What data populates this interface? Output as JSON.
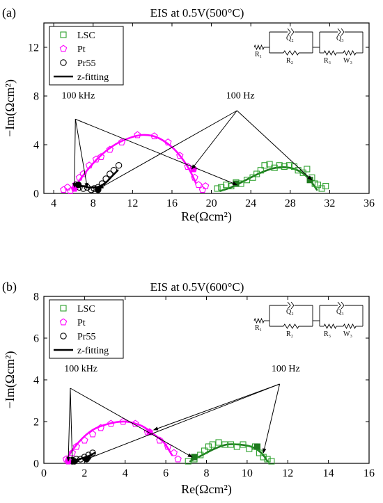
{
  "chart_data": [
    {
      "type": "scatter",
      "panel_label": "(a)",
      "title": "EIS at 0.5V(500°C)",
      "xlabel": "Re(Ωcm²)",
      "ylabel": "−Im(Ωcm²)",
      "xlim": [
        3,
        36
      ],
      "ylim": [
        0,
        14
      ],
      "xticks": [
        "4",
        "8",
        "12",
        "16",
        "20",
        "24",
        "28",
        "32",
        "36"
      ],
      "xtick_values": [
        4,
        8,
        12,
        16,
        20,
        24,
        28,
        32,
        36
      ],
      "yticks": [
        "0",
        "4",
        "8",
        "12"
      ],
      "ytick_values": [
        0,
        4,
        8,
        12
      ],
      "legend": {
        "position": "top-left",
        "entries": [
          "LSC",
          "Pt",
          "Pr55",
          "z-fitting"
        ]
      },
      "series": [
        {
          "name": "LSC",
          "color": "#2ca02c",
          "marker": "square",
          "x": [
            20.6,
            21.0,
            21.5,
            22.0,
            22.5,
            23.0,
            23.6,
            24.2,
            24.6,
            25.0,
            25.4,
            25.9,
            26.4,
            26.9,
            27.4,
            27.9,
            28.4,
            28.8,
            29.3,
            29.7,
            30.2,
            30.5,
            30.8,
            31.2,
            31.6
          ],
          "y": [
            0.4,
            0.5,
            0.7,
            0.6,
            0.9,
            0.8,
            1.1,
            1.3,
            1.6,
            1.9,
            2.3,
            2.4,
            2.1,
            2.3,
            2.2,
            2.3,
            2.2,
            1.9,
            1.7,
            2.0,
            1.3,
            0.8,
            0.7,
            0.4,
            0.6
          ]
        },
        {
          "name": "Pt",
          "color": "#ff00ff",
          "marker": "pentagon",
          "x": [
            5.0,
            5.4,
            5.7,
            6.2,
            6.6,
            7.0,
            7.6,
            8.3,
            8.8,
            9.7,
            10.9,
            12.5,
            14.2,
            15.6,
            16.8,
            17.6,
            18.3,
            18.7,
            19.1,
            19.4
          ],
          "y": [
            0.3,
            0.5,
            0.2,
            0.7,
            1.3,
            1.6,
            2.3,
            2.8,
            3.0,
            3.6,
            4.2,
            4.8,
            4.7,
            4.2,
            3.1,
            2.2,
            1.3,
            0.7,
            0.3,
            0.6
          ]
        },
        {
          "name": "Pr55",
          "color": "#000000",
          "marker": "circle",
          "x": [
            6.3,
            6.6,
            7.0,
            7.4,
            7.8,
            8.1,
            8.5,
            8.9,
            9.3,
            9.7,
            10.1,
            10.6
          ],
          "y": [
            0.7,
            0.5,
            0.4,
            0.5,
            0.3,
            0.4,
            0.5,
            0.8,
            1.2,
            1.6,
            1.9,
            2.3
          ]
        }
      ],
      "fits": [
        {
          "series": "LSC",
          "color": "#1e7a1e",
          "x": [
            20.9,
            22.0,
            23.5,
            25.0,
            26.5,
            28.0,
            29.2,
            30.0,
            30.7
          ],
          "y": [
            0.2,
            0.5,
            1.1,
            1.7,
            2.1,
            2.1,
            1.7,
            1.1,
            0.3
          ]
        },
        {
          "series": "Pt",
          "color": "#ff00ff",
          "x": [
            6.0,
            7.0,
            8.5,
            10.0,
            11.5,
            13.0,
            14.5,
            16.0,
            17.0,
            17.8,
            18.4
          ],
          "y": [
            0.3,
            1.5,
            2.9,
            3.9,
            4.5,
            4.8,
            4.6,
            3.8,
            2.9,
            1.9,
            0.9
          ]
        },
        {
          "series": "Pr55",
          "color": "#000000",
          "x": [
            6.0,
            6.8,
            7.5,
            8.2,
            8.7,
            9.3,
            9.9,
            10.5
          ],
          "y": [
            0.3,
            0.6,
            0.5,
            0.5,
            0.6,
            0.9,
            1.4,
            1.9
          ]
        }
      ],
      "filled_points": [
        {
          "series": "LSC",
          "color": "#1e7a1e",
          "marker": "square",
          "x": [
            22.5,
            30.0
          ],
          "y": [
            0.8,
            1.1
          ]
        },
        {
          "series": "Pt",
          "color": "#ff00ff",
          "marker": "pentagon",
          "x": [
            6.1,
            18.2
          ],
          "y": [
            0.4,
            2.0
          ]
        },
        {
          "series": "Pr55",
          "color": "#000000",
          "marker": "circle",
          "x": [
            6.5,
            8.5
          ],
          "y": [
            0.7,
            0.3
          ]
        }
      ],
      "annotations": [
        {
          "text": "100 kHz",
          "anchor": [
            4.8,
            7.8
          ],
          "arrow_start": [
            6.2,
            6.1
          ],
          "targets": [
            [
              6.1,
              0.5
            ],
            [
              7.4,
              0.5
            ],
            [
              22.6,
              0.7
            ]
          ]
        },
        {
          "text": "100 Hz",
          "anchor": [
            21.5,
            7.8
          ],
          "arrow_start": [
            22.6,
            6.8
          ],
          "targets": [
            [
              8.6,
              0.4
            ],
            [
              18.0,
              2.0
            ],
            [
              30.2,
              1.1
            ]
          ]
        }
      ],
      "circuit": {
        "labels": [
          "R₁",
          "Q₂",
          "R₂",
          "Q₃",
          "R₃",
          "W₃"
        ]
      }
    },
    {
      "type": "scatter",
      "panel_label": "(b)",
      "title": "EIS at 0.5V(600°C)",
      "xlabel": "Re(Ωcm²)",
      "ylabel": "−Im(Ωcm²)",
      "xlim": [
        0,
        16
      ],
      "ylim": [
        0,
        8
      ],
      "xticks": [
        "0",
        "2",
        "4",
        "6",
        "8",
        "10",
        "12",
        "14",
        "16"
      ],
      "xtick_values": [
        0,
        2,
        4,
        6,
        8,
        10,
        12,
        14,
        16
      ],
      "yticks": [
        "0",
        "2",
        "4",
        "6",
        "8"
      ],
      "ytick_values": [
        0,
        2,
        4,
        6,
        8
      ],
      "legend": {
        "position": "top-left",
        "entries": [
          "LSC",
          "Pt",
          "Pr55",
          "z-fitting"
        ]
      },
      "series": [
        {
          "name": "LSC",
          "color": "#2ca02c",
          "marker": "square",
          "x": [
            7.1,
            7.4,
            7.7,
            7.9,
            8.1,
            8.3,
            8.6,
            8.9,
            9.2,
            9.5,
            9.8,
            10.1,
            10.4,
            10.6,
            10.8,
            11.0,
            11.2
          ],
          "y": [
            0.1,
            0.2,
            0.4,
            0.6,
            0.8,
            0.9,
            1.0,
            0.9,
            0.9,
            0.8,
            0.9,
            0.7,
            0.8,
            0.5,
            0.3,
            0.2,
            0.1
          ]
        },
        {
          "name": "Pt",
          "color": "#ff00ff",
          "marker": "pentagon",
          "x": [
            1.1,
            1.4,
            1.6,
            2.0,
            2.4,
            2.8,
            3.3,
            3.9,
            4.5,
            5.1,
            5.7,
            6.1,
            6.4,
            6.6
          ],
          "y": [
            0.2,
            0.5,
            0.8,
            1.1,
            1.4,
            1.7,
            1.9,
            2.0,
            1.9,
            1.5,
            1.1,
            0.8,
            0.5,
            0.2
          ]
        },
        {
          "name": "Pr55",
          "color": "#000000",
          "marker": "circle",
          "x": [
            1.4,
            1.6,
            1.8,
            2.0,
            2.2,
            2.4
          ],
          "y": [
            0.1,
            0.2,
            0.2,
            0.3,
            0.4,
            0.5
          ]
        }
      ],
      "fits": [
        {
          "series": "LSC",
          "color": "#1e7a1e",
          "x": [
            7.2,
            7.8,
            8.4,
            9.0,
            9.6,
            10.2,
            10.7,
            11.0
          ],
          "y": [
            0.1,
            0.4,
            0.7,
            0.9,
            0.9,
            0.8,
            0.5,
            0.1
          ]
        },
        {
          "series": "Pt",
          "color": "#ff00ff",
          "x": [
            1.1,
            1.7,
            2.4,
            3.2,
            4.0,
            4.8,
            5.4,
            5.9,
            6.3
          ],
          "y": [
            0.2,
            1.0,
            1.6,
            1.9,
            2.0,
            1.8,
            1.4,
            1.0,
            0.4
          ]
        },
        {
          "series": "Pr55",
          "color": "#000000",
          "x": [
            1.3,
            1.6,
            1.9,
            2.2,
            2.5
          ],
          "y": [
            0.05,
            0.15,
            0.25,
            0.35,
            0.5
          ]
        }
      ],
      "filled_points": [
        {
          "series": "LSC",
          "color": "#1e7a1e",
          "marker": "square",
          "x": [
            7.4,
            10.5
          ],
          "y": [
            0.3,
            0.8
          ]
        },
        {
          "series": "Pt",
          "color": "#ff00ff",
          "marker": "pentagon",
          "x": [
            1.2,
            5.2
          ],
          "y": [
            0.1,
            1.5
          ]
        },
        {
          "series": "Pr55",
          "color": "#000000",
          "marker": "circle",
          "x": [
            1.5,
            2.1
          ],
          "y": [
            0.1,
            0.2
          ]
        }
      ],
      "annotations": [
        {
          "text": "100 kHz",
          "anchor": [
            1.0,
            4.4
          ],
          "arrow_start": [
            1.3,
            3.6
          ],
          "targets": [
            [
              1.2,
              0.1
            ],
            [
              1.4,
              0.1
            ],
            [
              7.3,
              0.3
            ]
          ]
        },
        {
          "text": "100 Hz",
          "anchor": [
            11.2,
            4.4
          ],
          "arrow_start": [
            11.6,
            3.8
          ],
          "targets": [
            [
              2.1,
              0.2
            ],
            [
              5.4,
              1.6
            ],
            [
              10.8,
              0.5
            ]
          ]
        }
      ],
      "circuit": {
        "labels": [
          "R₁",
          "Q₂",
          "R₂",
          "Q₃",
          "R₃",
          "W₃"
        ]
      }
    }
  ]
}
